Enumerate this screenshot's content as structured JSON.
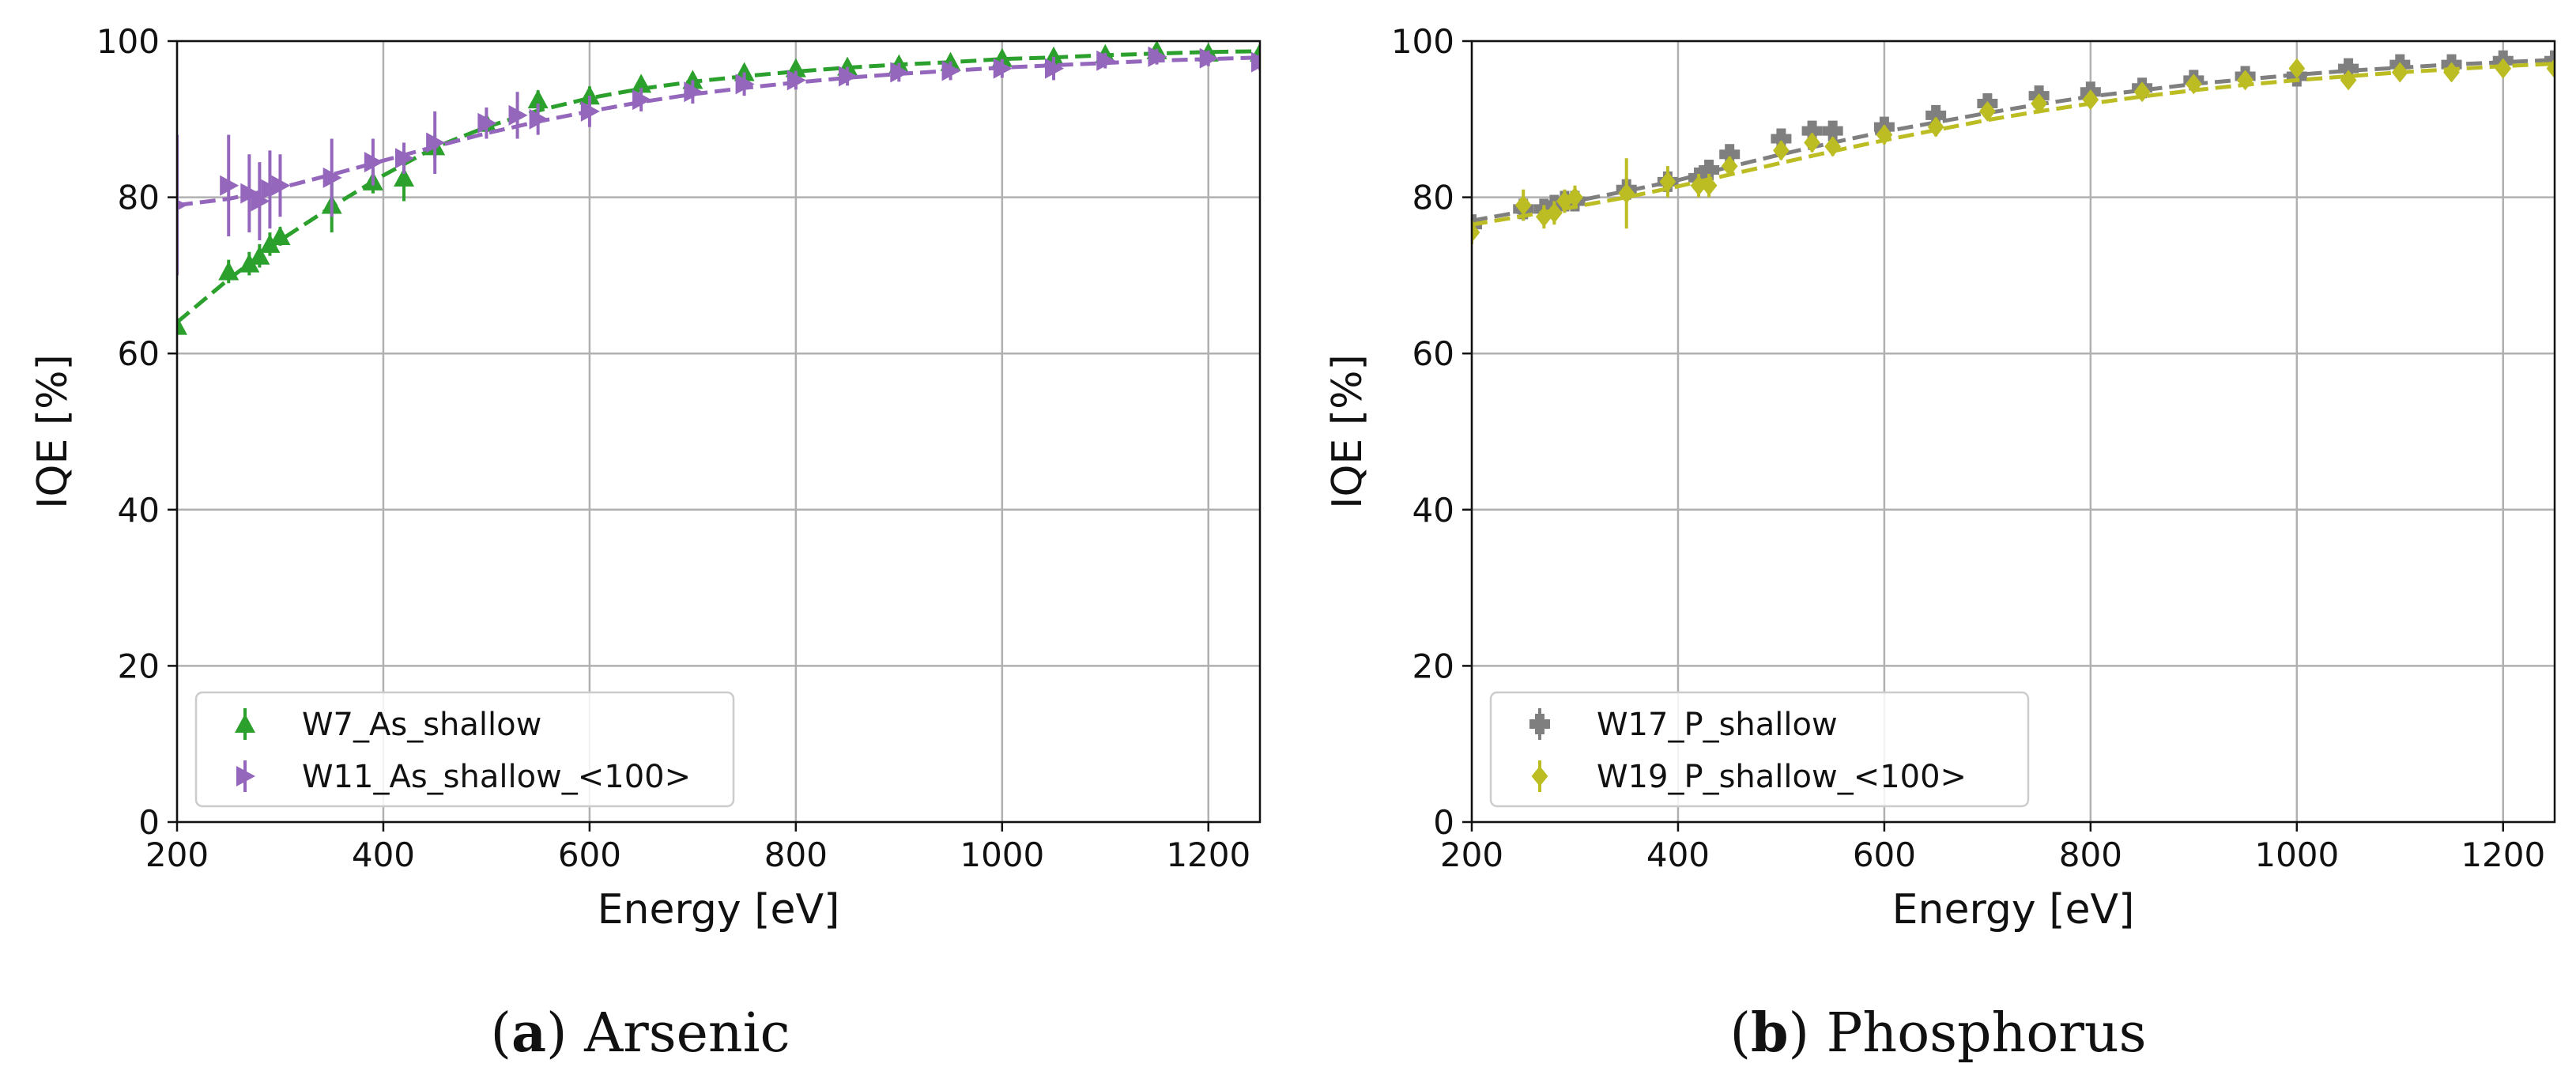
{
  "chart_data": [
    {
      "type": "line",
      "panel": "a",
      "caption_letter": "a",
      "caption_text": "Arsenic",
      "xlabel": "Energy [eV]",
      "ylabel": "IQE [%]",
      "xlim": [
        200,
        1250
      ],
      "ylim": [
        0,
        100
      ],
      "xticks": [
        200,
        400,
        600,
        800,
        1000,
        1200
      ],
      "yticks": [
        0,
        20,
        40,
        60,
        80,
        100
      ],
      "grid": true,
      "legend_position": "lower-left",
      "series": [
        {
          "name": "W7_As_shallow",
          "color": "#2ca02c",
          "marker": "triangle-up",
          "points": [
            {
              "x": 200,
              "y": 63.5,
              "err": 0.8
            },
            {
              "x": 250,
              "y": 70.5,
              "err": 1.5
            },
            {
              "x": 270,
              "y": 71.5,
              "err": 1.5
            },
            {
              "x": 280,
              "y": 72.5,
              "err": 1.5
            },
            {
              "x": 290,
              "y": 74,
              "err": 1.5
            },
            {
              "x": 300,
              "y": 75,
              "err": 1.2
            },
            {
              "x": 350,
              "y": 79,
              "err": 3.5
            },
            {
              "x": 390,
              "y": 82,
              "err": 1.5
            },
            {
              "x": 420,
              "y": 82.5,
              "err": 3
            },
            {
              "x": 450,
              "y": 86.5,
              "err": 1.5
            },
            {
              "x": 500,
              "y": 89.5,
              "err": 1
            },
            {
              "x": 550,
              "y": 92.5,
              "err": 1.2
            },
            {
              "x": 600,
              "y": 93,
              "err": 1.2
            },
            {
              "x": 650,
              "y": 94.5,
              "err": 1
            },
            {
              "x": 700,
              "y": 95,
              "err": 1
            },
            {
              "x": 750,
              "y": 96,
              "err": 1
            },
            {
              "x": 800,
              "y": 96.5,
              "err": 0.8
            },
            {
              "x": 850,
              "y": 96.7,
              "err": 0.8
            },
            {
              "x": 900,
              "y": 97,
              "err": 0.8
            },
            {
              "x": 950,
              "y": 97.3,
              "err": 0.8
            },
            {
              "x": 1000,
              "y": 97.8,
              "err": 0.8
            },
            {
              "x": 1050,
              "y": 98,
              "err": 0.8
            },
            {
              "x": 1100,
              "y": 98.3,
              "err": 0.8
            },
            {
              "x": 1150,
              "y": 98.8,
              "err": 0.8
            },
            {
              "x": 1200,
              "y": 98.5,
              "err": 0.8
            },
            {
              "x": 1250,
              "y": 98.5,
              "err": 0.8
            }
          ],
          "fit": [
            [
              200,
              64
            ],
            [
              250,
              69.5
            ],
            [
              300,
              74.5
            ],
            [
              350,
              78.8
            ],
            [
              400,
              82.8
            ],
            [
              450,
              86.4
            ],
            [
              500,
              89
            ],
            [
              550,
              91.1
            ],
            [
              600,
              92.7
            ],
            [
              650,
              93.9
            ],
            [
              700,
              94.8
            ],
            [
              750,
              95.5
            ],
            [
              800,
              96.1
            ],
            [
              850,
              96.6
            ],
            [
              900,
              97
            ],
            [
              950,
              97.3
            ],
            [
              1000,
              97.7
            ],
            [
              1050,
              97.9
            ],
            [
              1100,
              98.2
            ],
            [
              1150,
              98.4
            ],
            [
              1200,
              98.6
            ],
            [
              1250,
              98.7
            ]
          ]
        },
        {
          "name": "W11_As_shallow_<100>",
          "color": "#9467bd",
          "marker": "triangle-right",
          "points": [
            {
              "x": 200,
              "y": 79,
              "err": 9
            },
            {
              "x": 250,
              "y": 81.5,
              "err": 6.5
            },
            {
              "x": 270,
              "y": 80.5,
              "err": 5
            },
            {
              "x": 280,
              "y": 79.5,
              "err": 5
            },
            {
              "x": 290,
              "y": 81,
              "err": 5
            },
            {
              "x": 300,
              "y": 81.5,
              "err": 4
            },
            {
              "x": 350,
              "y": 82.5,
              "err": 5
            },
            {
              "x": 390,
              "y": 84.5,
              "err": 3
            },
            {
              "x": 420,
              "y": 85,
              "err": 2
            },
            {
              "x": 450,
              "y": 87,
              "err": 4
            },
            {
              "x": 500,
              "y": 89.5,
              "err": 2
            },
            {
              "x": 530,
              "y": 90.5,
              "err": 3
            },
            {
              "x": 550,
              "y": 90,
              "err": 2
            },
            {
              "x": 600,
              "y": 91,
              "err": 2
            },
            {
              "x": 650,
              "y": 92.5,
              "err": 1.5
            },
            {
              "x": 700,
              "y": 93.5,
              "err": 1.5
            },
            {
              "x": 750,
              "y": 94.5,
              "err": 1.5
            },
            {
              "x": 800,
              "y": 95,
              "err": 1.2
            },
            {
              "x": 850,
              "y": 95.5,
              "err": 1.2
            },
            {
              "x": 900,
              "y": 96,
              "err": 1.2
            },
            {
              "x": 950,
              "y": 96.2,
              "err": 1.2
            },
            {
              "x": 1000,
              "y": 96.5,
              "err": 1.2
            },
            {
              "x": 1050,
              "y": 96.5,
              "err": 1.5
            },
            {
              "x": 1100,
              "y": 97.5,
              "err": 1
            },
            {
              "x": 1150,
              "y": 98,
              "err": 1
            },
            {
              "x": 1200,
              "y": 97.8,
              "err": 1
            },
            {
              "x": 1250,
              "y": 97.3,
              "err": 1
            }
          ],
          "fit": [
            [
              200,
              79
            ],
            [
              250,
              79.8
            ],
            [
              300,
              81.2
            ],
            [
              350,
              82.9
            ],
            [
              400,
              84.7
            ],
            [
              450,
              86.5
            ],
            [
              500,
              88.2
            ],
            [
              550,
              89.7
            ],
            [
              600,
              91
            ],
            [
              650,
              92.2
            ],
            [
              700,
              93.2
            ],
            [
              750,
              94
            ],
            [
              800,
              94.7
            ],
            [
              850,
              95.3
            ],
            [
              900,
              95.8
            ],
            [
              950,
              96.2
            ],
            [
              1000,
              96.6
            ],
            [
              1050,
              96.9
            ],
            [
              1100,
              97.2
            ],
            [
              1150,
              97.5
            ],
            [
              1200,
              97.7
            ],
            [
              1250,
              97.9
            ]
          ]
        }
      ]
    },
    {
      "type": "line",
      "panel": "b",
      "caption_letter": "b",
      "caption_text": "Phosphorus",
      "xlabel": "Energy [eV]",
      "ylabel": "IQE [%]",
      "xlim": [
        200,
        1250
      ],
      "ylim": [
        0,
        100
      ],
      "xticks": [
        200,
        400,
        600,
        800,
        1000,
        1200
      ],
      "yticks": [
        0,
        20,
        40,
        60,
        80,
        100
      ],
      "grid": true,
      "legend_position": "lower-left",
      "series": [
        {
          "name": "W17_P_shallow",
          "color": "#7f7f7f",
          "marker": "plus",
          "points": [
            {
              "x": 200,
              "y": 76.5,
              "err": 0.8
            },
            {
              "x": 250,
              "y": 78.5,
              "err": 1.5
            },
            {
              "x": 270,
              "y": 78.5,
              "err": 1.2
            },
            {
              "x": 280,
              "y": 79,
              "err": 1.2
            },
            {
              "x": 290,
              "y": 79.5,
              "err": 1.2
            },
            {
              "x": 300,
              "y": 79.5,
              "err": 1.2
            },
            {
              "x": 350,
              "y": 81,
              "err": 1.5
            },
            {
              "x": 390,
              "y": 82,
              "err": 1.5
            },
            {
              "x": 420,
              "y": 82.5,
              "err": 1.2
            },
            {
              "x": 430,
              "y": 83.5,
              "err": 1.2
            },
            {
              "x": 450,
              "y": 85.5,
              "err": 1.2
            },
            {
              "x": 500,
              "y": 87.5,
              "err": 1.2
            },
            {
              "x": 530,
              "y": 88.5,
              "err": 1.2
            },
            {
              "x": 550,
              "y": 88.5,
              "err": 1.2
            },
            {
              "x": 600,
              "y": 89,
              "err": 1
            },
            {
              "x": 650,
              "y": 90.5,
              "err": 1
            },
            {
              "x": 700,
              "y": 92,
              "err": 1
            },
            {
              "x": 750,
              "y": 93,
              "err": 1
            },
            {
              "x": 800,
              "y": 93.5,
              "err": 1
            },
            {
              "x": 850,
              "y": 94,
              "err": 1
            },
            {
              "x": 900,
              "y": 95,
              "err": 1
            },
            {
              "x": 950,
              "y": 95.5,
              "err": 1
            },
            {
              "x": 1000,
              "y": 95.5,
              "err": 1
            },
            {
              "x": 1050,
              "y": 96.5,
              "err": 1
            },
            {
              "x": 1100,
              "y": 97,
              "err": 1
            },
            {
              "x": 1150,
              "y": 97,
              "err": 1
            },
            {
              "x": 1200,
              "y": 97.5,
              "err": 1
            },
            {
              "x": 1250,
              "y": 97.5,
              "err": 1
            }
          ],
          "fit": [
            [
              200,
              77
            ],
            [
              250,
              78.2
            ],
            [
              300,
              79.5
            ],
            [
              350,
              80.8
            ],
            [
              400,
              82.2
            ],
            [
              450,
              83.9
            ],
            [
              500,
              85.5
            ],
            [
              550,
              87
            ],
            [
              600,
              88.4
            ],
            [
              650,
              89.6
            ],
            [
              700,
              90.8
            ],
            [
              750,
              91.9
            ],
            [
              800,
              92.9
            ],
            [
              850,
              93.7
            ],
            [
              900,
              94.5
            ],
            [
              950,
              95.1
            ],
            [
              1000,
              95.7
            ],
            [
              1050,
              96.2
            ],
            [
              1100,
              96.6
            ],
            [
              1150,
              97
            ],
            [
              1200,
              97.3
            ],
            [
              1250,
              97.6
            ]
          ]
        },
        {
          "name": "W19_P_shallow_<100>",
          "color": "#bcbd22",
          "marker": "diamond",
          "points": [
            {
              "x": 200,
              "y": 75.5,
              "err": 1.5
            },
            {
              "x": 250,
              "y": 79,
              "err": 2
            },
            {
              "x": 270,
              "y": 77.5,
              "err": 1.5
            },
            {
              "x": 280,
              "y": 78,
              "err": 1.5
            },
            {
              "x": 290,
              "y": 79.5,
              "err": 1.5
            },
            {
              "x": 300,
              "y": 80,
              "err": 1.5
            },
            {
              "x": 350,
              "y": 80.5,
              "err": 4.5
            },
            {
              "x": 390,
              "y": 82,
              "err": 2
            },
            {
              "x": 420,
              "y": 81.5,
              "err": 1.5
            },
            {
              "x": 430,
              "y": 81.5,
              "err": 1.5
            },
            {
              "x": 450,
              "y": 84,
              "err": 1.2
            },
            {
              "x": 500,
              "y": 86,
              "err": 1.2
            },
            {
              "x": 530,
              "y": 87,
              "err": 1.2
            },
            {
              "x": 550,
              "y": 86.5,
              "err": 1.2
            },
            {
              "x": 600,
              "y": 88,
              "err": 1.2
            },
            {
              "x": 650,
              "y": 89,
              "err": 1.2
            },
            {
              "x": 700,
              "y": 91,
              "err": 1
            },
            {
              "x": 750,
              "y": 92,
              "err": 1
            },
            {
              "x": 800,
              "y": 92.5,
              "err": 1
            },
            {
              "x": 850,
              "y": 93.5,
              "err": 1
            },
            {
              "x": 900,
              "y": 94.5,
              "err": 1
            },
            {
              "x": 950,
              "y": 95,
              "err": 1
            },
            {
              "x": 1000,
              "y": 96.5,
              "err": 1
            },
            {
              "x": 1050,
              "y": 95,
              "err": 1
            },
            {
              "x": 1100,
              "y": 96,
              "err": 1
            },
            {
              "x": 1150,
              "y": 96,
              "err": 1
            },
            {
              "x": 1200,
              "y": 96.5,
              "err": 1
            },
            {
              "x": 1250,
              "y": 96.5,
              "err": 1
            }
          ],
          "fit": [
            [
              200,
              76.5
            ],
            [
              250,
              77.6
            ],
            [
              300,
              78.8
            ],
            [
              350,
              80
            ],
            [
              400,
              81.4
            ],
            [
              450,
              82.9
            ],
            [
              500,
              84.4
            ],
            [
              550,
              85.9
            ],
            [
              600,
              87.3
            ],
            [
              650,
              88.6
            ],
            [
              700,
              89.9
            ],
            [
              750,
              91
            ],
            [
              800,
              92
            ],
            [
              850,
              92.9
            ],
            [
              900,
              93.7
            ],
            [
              950,
              94.4
            ],
            [
              1000,
              95
            ],
            [
              1050,
              95.5
            ],
            [
              1100,
              96
            ],
            [
              1150,
              96.4
            ],
            [
              1200,
              96.8
            ],
            [
              1250,
              97.1
            ]
          ]
        }
      ]
    }
  ]
}
